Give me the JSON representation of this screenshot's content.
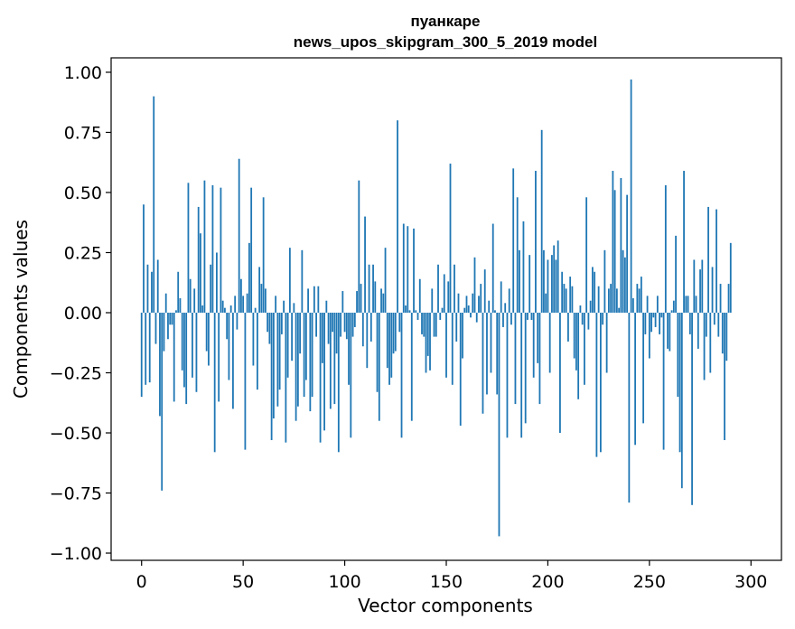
{
  "chart_data": {
    "type": "bar",
    "title_lines": [
      "пуанкаре",
      "news_upos_skipgram_300_5_2019 model"
    ],
    "xlabel": "Vector components",
    "ylabel": "Components values",
    "xlim": [
      -15,
      315
    ],
    "ylim": [
      -1.03,
      1.06
    ],
    "xticks": [
      0,
      50,
      100,
      150,
      200,
      250,
      300
    ],
    "xtick_labels": [
      "0",
      "50",
      "100",
      "150",
      "200",
      "250",
      "300"
    ],
    "yticks": [
      1.0,
      0.75,
      0.5,
      0.25,
      0.0,
      -0.25,
      -0.5,
      -0.75,
      -1.0
    ],
    "ytick_labels": [
      "1.00",
      "0.75",
      "0.50",
      "0.25",
      "0.00",
      "−0.25",
      "−0.50",
      "−0.75",
      "−1.00"
    ],
    "bar_color": "#1f77b4",
    "grid": false,
    "x": "0..299",
    "values": [
      -0.35,
      0.45,
      -0.3,
      0.2,
      -0.29,
      0.17,
      0.9,
      -0.13,
      0.22,
      -0.43,
      -0.74,
      -0.16,
      0.08,
      -0.11,
      -0.05,
      -0.05,
      -0.37,
      0.01,
      0.17,
      0.06,
      -0.24,
      -0.31,
      -0.38,
      0.54,
      0.14,
      -0.27,
      0.1,
      -0.33,
      0.44,
      0.33,
      0.03,
      0.55,
      -0.16,
      -0.22,
      0.2,
      0.53,
      -0.58,
      0.25,
      -0.37,
      0.52,
      0.05,
      0.02,
      -0.11,
      -0.28,
      0.03,
      -0.4,
      0.07,
      -0.07,
      0.64,
      0.14,
      0.07,
      -0.57,
      0.08,
      0.29,
      0.52,
      -0.22,
      0.02,
      -0.32,
      0.19,
      0.12,
      0.48,
      0.1,
      -0.08,
      -0.13,
      -0.53,
      -0.44,
      0.07,
      -0.39,
      -0.32,
      -0.09,
      0.05,
      -0.54,
      -0.27,
      0.27,
      -0.2,
      0.04,
      -0.45,
      -0.39,
      -0.17,
      0.26,
      -0.35,
      -0.28,
      0.1,
      -0.41,
      -0.35,
      0.11,
      -0.1,
      0.11,
      -0.54,
      -0.21,
      -0.49,
      0.05,
      -0.13,
      -0.4,
      -0.08,
      -0.38,
      -0.17,
      -0.58,
      -0.1,
      0.09,
      -0.08,
      -0.11,
      -0.3,
      -0.52,
      -0.1,
      -0.06,
      0.09,
      0.55,
      0.12,
      -0.14,
      0.4,
      -0.23,
      0.2,
      -0.12,
      0.2,
      0.13,
      -0.33,
      -0.45,
      0.1,
      0.08,
      0.27,
      -0.23,
      -0.3,
      -0.27,
      -0.17,
      -0.16,
      0.8,
      -0.08,
      -0.52,
      0.37,
      0.03,
      0.36,
      0.01,
      -0.45,
      0.35,
      0.01,
      -0.03,
      0.14,
      -0.09,
      -0.1,
      -0.25,
      -0.18,
      -0.24,
      0.1,
      -0.1,
      -0.1,
      0.2,
      -0.03,
      0.02,
      0.16,
      -0.27,
      0.13,
      0.62,
      -0.3,
      0.2,
      -0.12,
      0.08,
      -0.47,
      -0.19,
      0.02,
      0.07,
      0.03,
      -0.02,
      0.08,
      0.23,
      -0.04,
      0.07,
      0.12,
      -0.42,
      0.18,
      -0.34,
      0.05,
      -0.25,
      0.37,
      0.01,
      -0.34,
      -0.93,
      0.13,
      -0.06,
      0.04,
      -0.52,
      0.1,
      -0.05,
      0.6,
      -0.38,
      0.48,
      0.26,
      -0.52,
      0.38,
      -0.46,
      -0.03,
      0.24,
      -0.03,
      -0.27,
      0.59,
      -0.21,
      -0.38,
      0.76,
      0.26,
      0.08,
      0.22,
      -0.25,
      0.24,
      0.28,
      0.22,
      0.3,
      -0.5,
      0.17,
      0.12,
      0.1,
      -0.12,
      0.15,
      0.11,
      -0.19,
      -0.24,
      -0.36,
      0.03,
      -0.05,
      -0.3,
      0.48,
      -0.07,
      0.05,
      0.19,
      0.17,
      -0.6,
      0.11,
      -0.58,
      -0.05,
      0.26,
      -0.25,
      0.1,
      0.12,
      0.59,
      0.51,
      0.1,
      0.02,
      0.56,
      0.26,
      0.23,
      0.49,
      -0.79,
      0.97,
      0.06,
      -0.55,
      0.12,
      0.1,
      0.15,
      -0.46,
      -0.09,
      0.07,
      -0.19,
      -0.08,
      -0.02,
      -0.06,
      0.07,
      -0.09,
      -0.02,
      -0.57,
      0.53,
      -0.15,
      -0.16,
      0.01,
      0.05,
      0.32,
      -0.35,
      -0.58,
      -0.73,
      0.59,
      0.07,
      0.07,
      -0.09,
      -0.8,
      0.22,
      0.07,
      -0.15,
      0.18,
      0.22,
      -0.28,
      -0.1,
      0.44,
      -0.25,
      0.19,
      -0.05,
      0.43,
      -0.1,
      0.12,
      -0.17,
      -0.53,
      -0.2,
      0.12,
      0.29
    ]
  }
}
